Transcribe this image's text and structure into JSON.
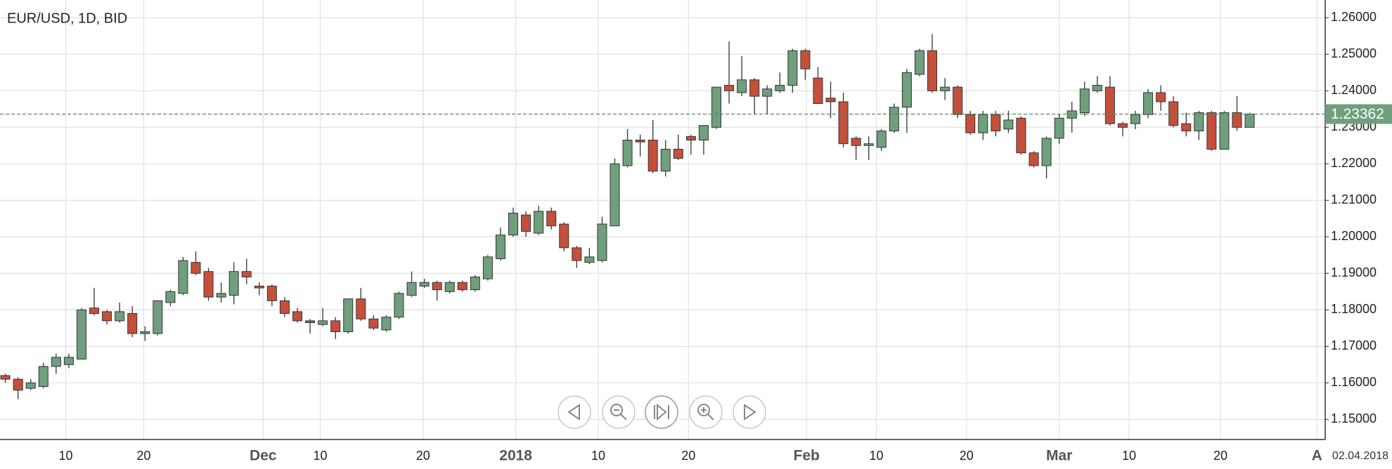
{
  "chart_data": {
    "type": "candlestick",
    "title": "EUR/USD, 1D, BID",
    "up_color": "#6f9f7d",
    "down_color": "#c4503b",
    "grid": true,
    "ylim": [
      1.14448,
      1.26487
    ],
    "yticks": [
      {
        "value": 1.15,
        "label": "1.15000"
      },
      {
        "value": 1.16,
        "label": "1.16000"
      },
      {
        "value": 1.17,
        "label": "1.17000"
      },
      {
        "value": 1.18,
        "label": "1.18000"
      },
      {
        "value": 1.19,
        "label": "1.19000"
      },
      {
        "value": 1.2,
        "label": "1.20000"
      },
      {
        "value": 1.21,
        "label": "1.21000"
      },
      {
        "value": 1.22,
        "label": "1.22000"
      },
      {
        "value": 1.23,
        "label": "1.23000"
      },
      {
        "value": 1.24,
        "label": "1.24000"
      },
      {
        "value": 1.25,
        "label": "1.25000"
      },
      {
        "value": 1.26,
        "label": "1.26000"
      }
    ],
    "xlim": [
      -0.42,
      103.95
    ],
    "xticks": [
      {
        "value": 4.76,
        "label": "10",
        "major": false
      },
      {
        "value": 10.9,
        "label": "20",
        "major": false
      },
      {
        "value": 20.3,
        "label": "Dec",
        "major": true
      },
      {
        "value": 24.8,
        "label": "10",
        "major": false
      },
      {
        "value": 32.9,
        "label": "20",
        "major": false
      },
      {
        "value": 40.2,
        "label": "2018",
        "major": true
      },
      {
        "value": 46.7,
        "label": "10",
        "major": false
      },
      {
        "value": 53.8,
        "label": "20",
        "major": false
      },
      {
        "value": 63.1,
        "label": "Feb",
        "major": true
      },
      {
        "value": 68.6,
        "label": "10",
        "major": false
      },
      {
        "value": 75.7,
        "label": "20",
        "major": false
      },
      {
        "value": 83.0,
        "label": "Mar",
        "major": true
      },
      {
        "value": 88.5,
        "label": "10",
        "major": false
      },
      {
        "value": 95.7,
        "label": "20",
        "major": false
      },
      {
        "value": 103.3,
        "label": "A",
        "major": true
      }
    ],
    "last_price": 1.23362,
    "date_label": "02.04.2018",
    "open": [
      1.162,
      1.161,
      1.1585,
      1.159,
      1.1645,
      1.165,
      1.1665,
      1.1805,
      1.1795,
      1.177,
      1.179,
      1.1735,
      1.1735,
      1.182,
      1.1845,
      1.193,
      1.1905,
      1.1835,
      1.184,
      1.1905,
      1.1865,
      1.1865,
      1.1825,
      1.1795,
      1.177,
      1.176,
      1.177,
      1.174,
      1.183,
      1.1775,
      1.1745,
      1.178,
      1.184,
      1.1865,
      1.1875,
      1.185,
      1.1875,
      1.1855,
      1.1885,
      1.194,
      1.2005,
      1.206,
      1.201,
      1.207,
      1.2035,
      1.197,
      1.193,
      1.1935,
      1.203,
      1.2195,
      1.2265,
      1.2265,
      1.218,
      1.224,
      1.2275,
      1.2265,
      1.23,
      1.2415,
      1.2395,
      1.243,
      1.2385,
      1.24,
      1.2415,
      1.251,
      1.2435,
      1.238,
      1.237,
      1.227,
      1.225,
      1.2245,
      1.229,
      1.2355,
      1.2445,
      1.251,
      1.24,
      1.241,
      1.2335,
      1.2285,
      1.2335,
      1.2295,
      1.2325,
      1.223,
      1.2195,
      1.227,
      1.2325,
      1.234,
      1.24,
      1.241,
      1.231,
      1.231,
      1.2335,
      1.2395,
      1.237,
      1.231,
      1.229,
      1.234,
      1.224,
      1.234,
      1.23
    ],
    "high": [
      1.1625,
      1.1615,
      1.161,
      1.1655,
      1.168,
      1.168,
      1.1805,
      1.186,
      1.18,
      1.182,
      1.181,
      1.1755,
      1.1825,
      1.1855,
      1.1945,
      1.196,
      1.1915,
      1.1875,
      1.193,
      1.194,
      1.1875,
      1.187,
      1.1835,
      1.1805,
      1.1775,
      1.1805,
      1.178,
      1.183,
      1.186,
      1.1785,
      1.1785,
      1.185,
      1.1905,
      1.1885,
      1.188,
      1.188,
      1.188,
      1.1895,
      1.195,
      1.2025,
      1.208,
      1.207,
      1.2085,
      1.208,
      1.204,
      1.1975,
      1.197,
      1.2055,
      1.2215,
      1.2295,
      1.228,
      1.232,
      1.2265,
      1.228,
      1.228,
      1.2305,
      1.241,
      1.2535,
      1.2495,
      1.2435,
      1.2415,
      1.245,
      1.2515,
      1.2515,
      1.2465,
      1.2425,
      1.2395,
      1.2275,
      1.2275,
      1.2295,
      1.2365,
      1.246,
      1.2515,
      1.2555,
      1.2435,
      1.2415,
      1.2345,
      1.2345,
      1.2345,
      1.2345,
      1.233,
      1.2235,
      1.2275,
      1.2335,
      1.237,
      1.2425,
      1.244,
      1.244,
      1.2315,
      1.2345,
      1.2405,
      1.2415,
      1.2385,
      1.234,
      1.2345,
      1.2345,
      1.2345,
      1.2385,
      1.234
    ],
    "low": [
      1.16,
      1.1555,
      1.158,
      1.1585,
      1.1625,
      1.164,
      1.1665,
      1.1785,
      1.176,
      1.1765,
      1.1725,
      1.1715,
      1.173,
      1.181,
      1.184,
      1.1895,
      1.1825,
      1.182,
      1.1815,
      1.187,
      1.184,
      1.181,
      1.178,
      1.1765,
      1.1735,
      1.1755,
      1.172,
      1.1735,
      1.177,
      1.1745,
      1.174,
      1.1775,
      1.1835,
      1.186,
      1.1825,
      1.1845,
      1.185,
      1.185,
      1.188,
      1.1935,
      1.2,
      1.2,
      1.2005,
      1.202,
      1.196,
      1.1915,
      1.1925,
      1.193,
      1.203,
      1.219,
      1.222,
      1.2175,
      1.2165,
      1.221,
      1.2225,
      1.2225,
      1.2295,
      1.2365,
      1.2385,
      1.2335,
      1.2335,
      1.2395,
      1.2395,
      1.243,
      1.2365,
      1.2325,
      1.2245,
      1.221,
      1.221,
      1.2235,
      1.2285,
      1.2285,
      1.244,
      1.2395,
      1.2375,
      1.2325,
      1.228,
      1.2265,
      1.2275,
      1.2285,
      1.2225,
      1.219,
      1.216,
      1.2255,
      1.2285,
      1.233,
      1.2395,
      1.2305,
      1.2275,
      1.2295,
      1.2325,
      1.2345,
      1.23,
      1.2275,
      1.2265,
      1.2235,
      1.224,
      1.229,
      1.23
    ],
    "close": [
      1.161,
      1.158,
      1.16,
      1.1645,
      1.167,
      1.167,
      1.18,
      1.179,
      1.177,
      1.1795,
      1.1735,
      1.174,
      1.1825,
      1.185,
      1.1935,
      1.19,
      1.1835,
      1.1845,
      1.1905,
      1.189,
      1.186,
      1.1825,
      1.179,
      1.177,
      1.1765,
      1.177,
      1.174,
      1.183,
      1.1775,
      1.175,
      1.178,
      1.1845,
      1.1875,
      1.1875,
      1.1855,
      1.1875,
      1.1855,
      1.189,
      1.1945,
      1.2005,
      1.2065,
      1.2015,
      1.207,
      1.203,
      1.197,
      1.1935,
      1.1945,
      1.2035,
      1.22,
      1.2265,
      1.226,
      1.218,
      1.224,
      1.2215,
      1.2265,
      1.2305,
      1.241,
      1.24,
      1.243,
      1.2385,
      1.2405,
      1.2415,
      1.251,
      1.246,
      1.2365,
      1.237,
      1.2255,
      1.225,
      1.2255,
      1.229,
      1.2355,
      1.245,
      1.251,
      1.24,
      1.241,
      1.2335,
      1.2285,
      1.2335,
      1.229,
      1.232,
      1.223,
      1.2195,
      1.227,
      1.2325,
      1.2345,
      1.2405,
      1.2415,
      1.231,
      1.23,
      1.2335,
      1.2395,
      1.237,
      1.2305,
      1.229,
      1.234,
      1.224,
      1.234,
      1.23,
      1.23362
    ]
  }
}
